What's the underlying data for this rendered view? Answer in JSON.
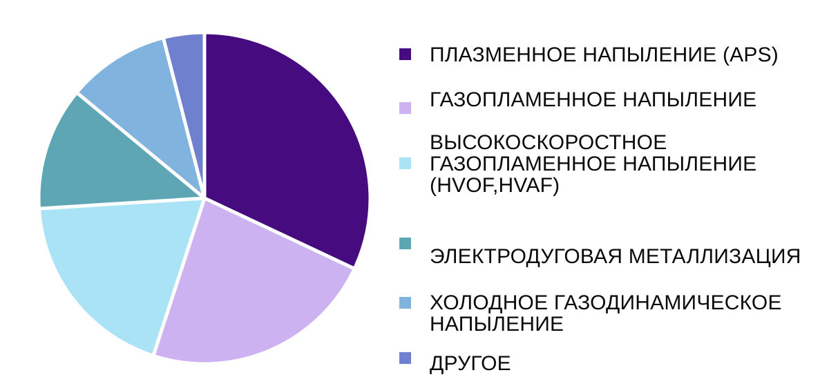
{
  "chart_data": {
    "type": "pie",
    "title": "",
    "legend_position": "right",
    "direction": "clockwise",
    "start_angle_deg": 0,
    "separator_color": "#ffffff",
    "slices": [
      {
        "label": "ПЛАЗМЕННОЕ НАПЫЛЕНИЕ (APS)",
        "value": 32,
        "color": "#460b7e"
      },
      {
        "label": "ГАЗОПЛАМЕННОЕ НАПЫЛЕНИЕ",
        "value": 23,
        "color": "#ccb2f1"
      },
      {
        "label": "ВЫСОКОСКОРОСТНОЕ ГАЗОПЛАМЕННОЕ НАПЫЛЕНИЕ (HVOF,HVAF)",
        "value": 19,
        "color": "#aae3f6"
      },
      {
        "label": "ЭЛЕКТРОДУГОВАЯ МЕТАЛЛИЗАЦИЯ",
        "value": 12,
        "color": "#5ea6b3"
      },
      {
        "label": "ХОЛОДНОЕ ГАЗОДИНАМИЧЕСКОЕ НАПЫЛЕНИЕ",
        "value": 10,
        "color": "#80b3dd"
      },
      {
        "label": "ДРУГОЕ",
        "value": 4,
        "color": "#6e80ce"
      }
    ]
  },
  "legend": {
    "items": [
      {
        "label": "ПЛАЗМЕННОЕ НАПЫЛЕНИЕ (APS)"
      },
      {
        "label": "ГАЗОПЛАМЕННОЕ НАПЫЛЕНИЕ"
      },
      {
        "label": "ВЫСОКОСКОРОСТНОЕ\nГАЗОПЛАМЕННОЕ НАПЫЛЕНИЕ\n(HVOF,HVAF)"
      },
      {
        "label": "ЭЛЕКТРОДУГОВАЯ МЕТАЛЛИЗАЦИЯ"
      },
      {
        "label": "ХОЛОДНОЕ ГАЗОДИНАМИЧЕСКОЕ\nНАПЫЛЕНИЕ"
      },
      {
        "label": "ДРУГОЕ"
      }
    ]
  }
}
